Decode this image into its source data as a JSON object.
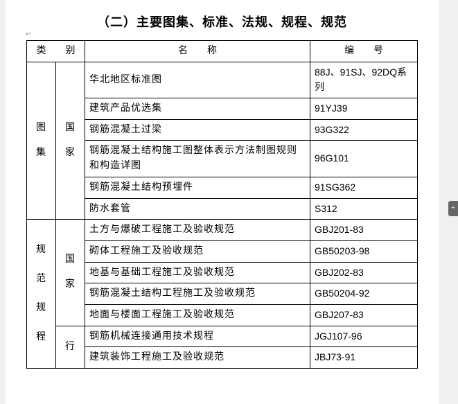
{
  "title": "（二）主要图集、标准、法规、规程、规范",
  "headers": {
    "category": "类　　别",
    "name": "名　　称",
    "code": "编　　号"
  },
  "groups": [
    {
      "cat": "图\n集",
      "subcats": [
        {
          "label": "国\n家",
          "rows": [
            {
              "name": "华北地区标准图",
              "code": "88J、91SJ、92DQ系列"
            },
            {
              "name": "建筑产品优选集",
              "code": "91YJ39"
            },
            {
              "name": "钢筋混凝土过梁",
              "code": "93G322"
            },
            {
              "name": "钢筋混凝土结构施工图整体表示方法制图规则和构造详图",
              "code": "96G101"
            },
            {
              "name": "钢筋混凝土结构预埋件",
              "code": "91SG362"
            },
            {
              "name": "防水套管",
              "code": "S312"
            }
          ]
        }
      ]
    },
    {
      "cat": "规\n范\n规\n程",
      "subcats": [
        {
          "label": "国\n家",
          "rows": [
            {
              "name": "土方与爆破工程施工及验收规范",
              "code": "GBJ201-83"
            },
            {
              "name": "砌体工程施工及验收规范",
              "code": "GB50203-98"
            },
            {
              "name": "地基与基础工程施工及验收规范",
              "code": "GBJ202-83"
            },
            {
              "name": "钢筋混凝土结构工程施工及验收规范",
              "code": "GB50204-92"
            },
            {
              "name": "地面与楼面工程施工及验收规范",
              "code": "GBJ207-83"
            }
          ]
        },
        {
          "label": "行",
          "rows": [
            {
              "name": "钢筋机械连接通用技术规程",
              "code": "JGJ107-96"
            },
            {
              "name": "建筑装饰工程施工及验收规范",
              "code": "JBJ73-91"
            }
          ]
        }
      ]
    }
  ],
  "colors": {
    "page_bg": "#ffffff",
    "outer_bg": "#f0f0f0",
    "border": "#000000",
    "text": "#000000"
  }
}
